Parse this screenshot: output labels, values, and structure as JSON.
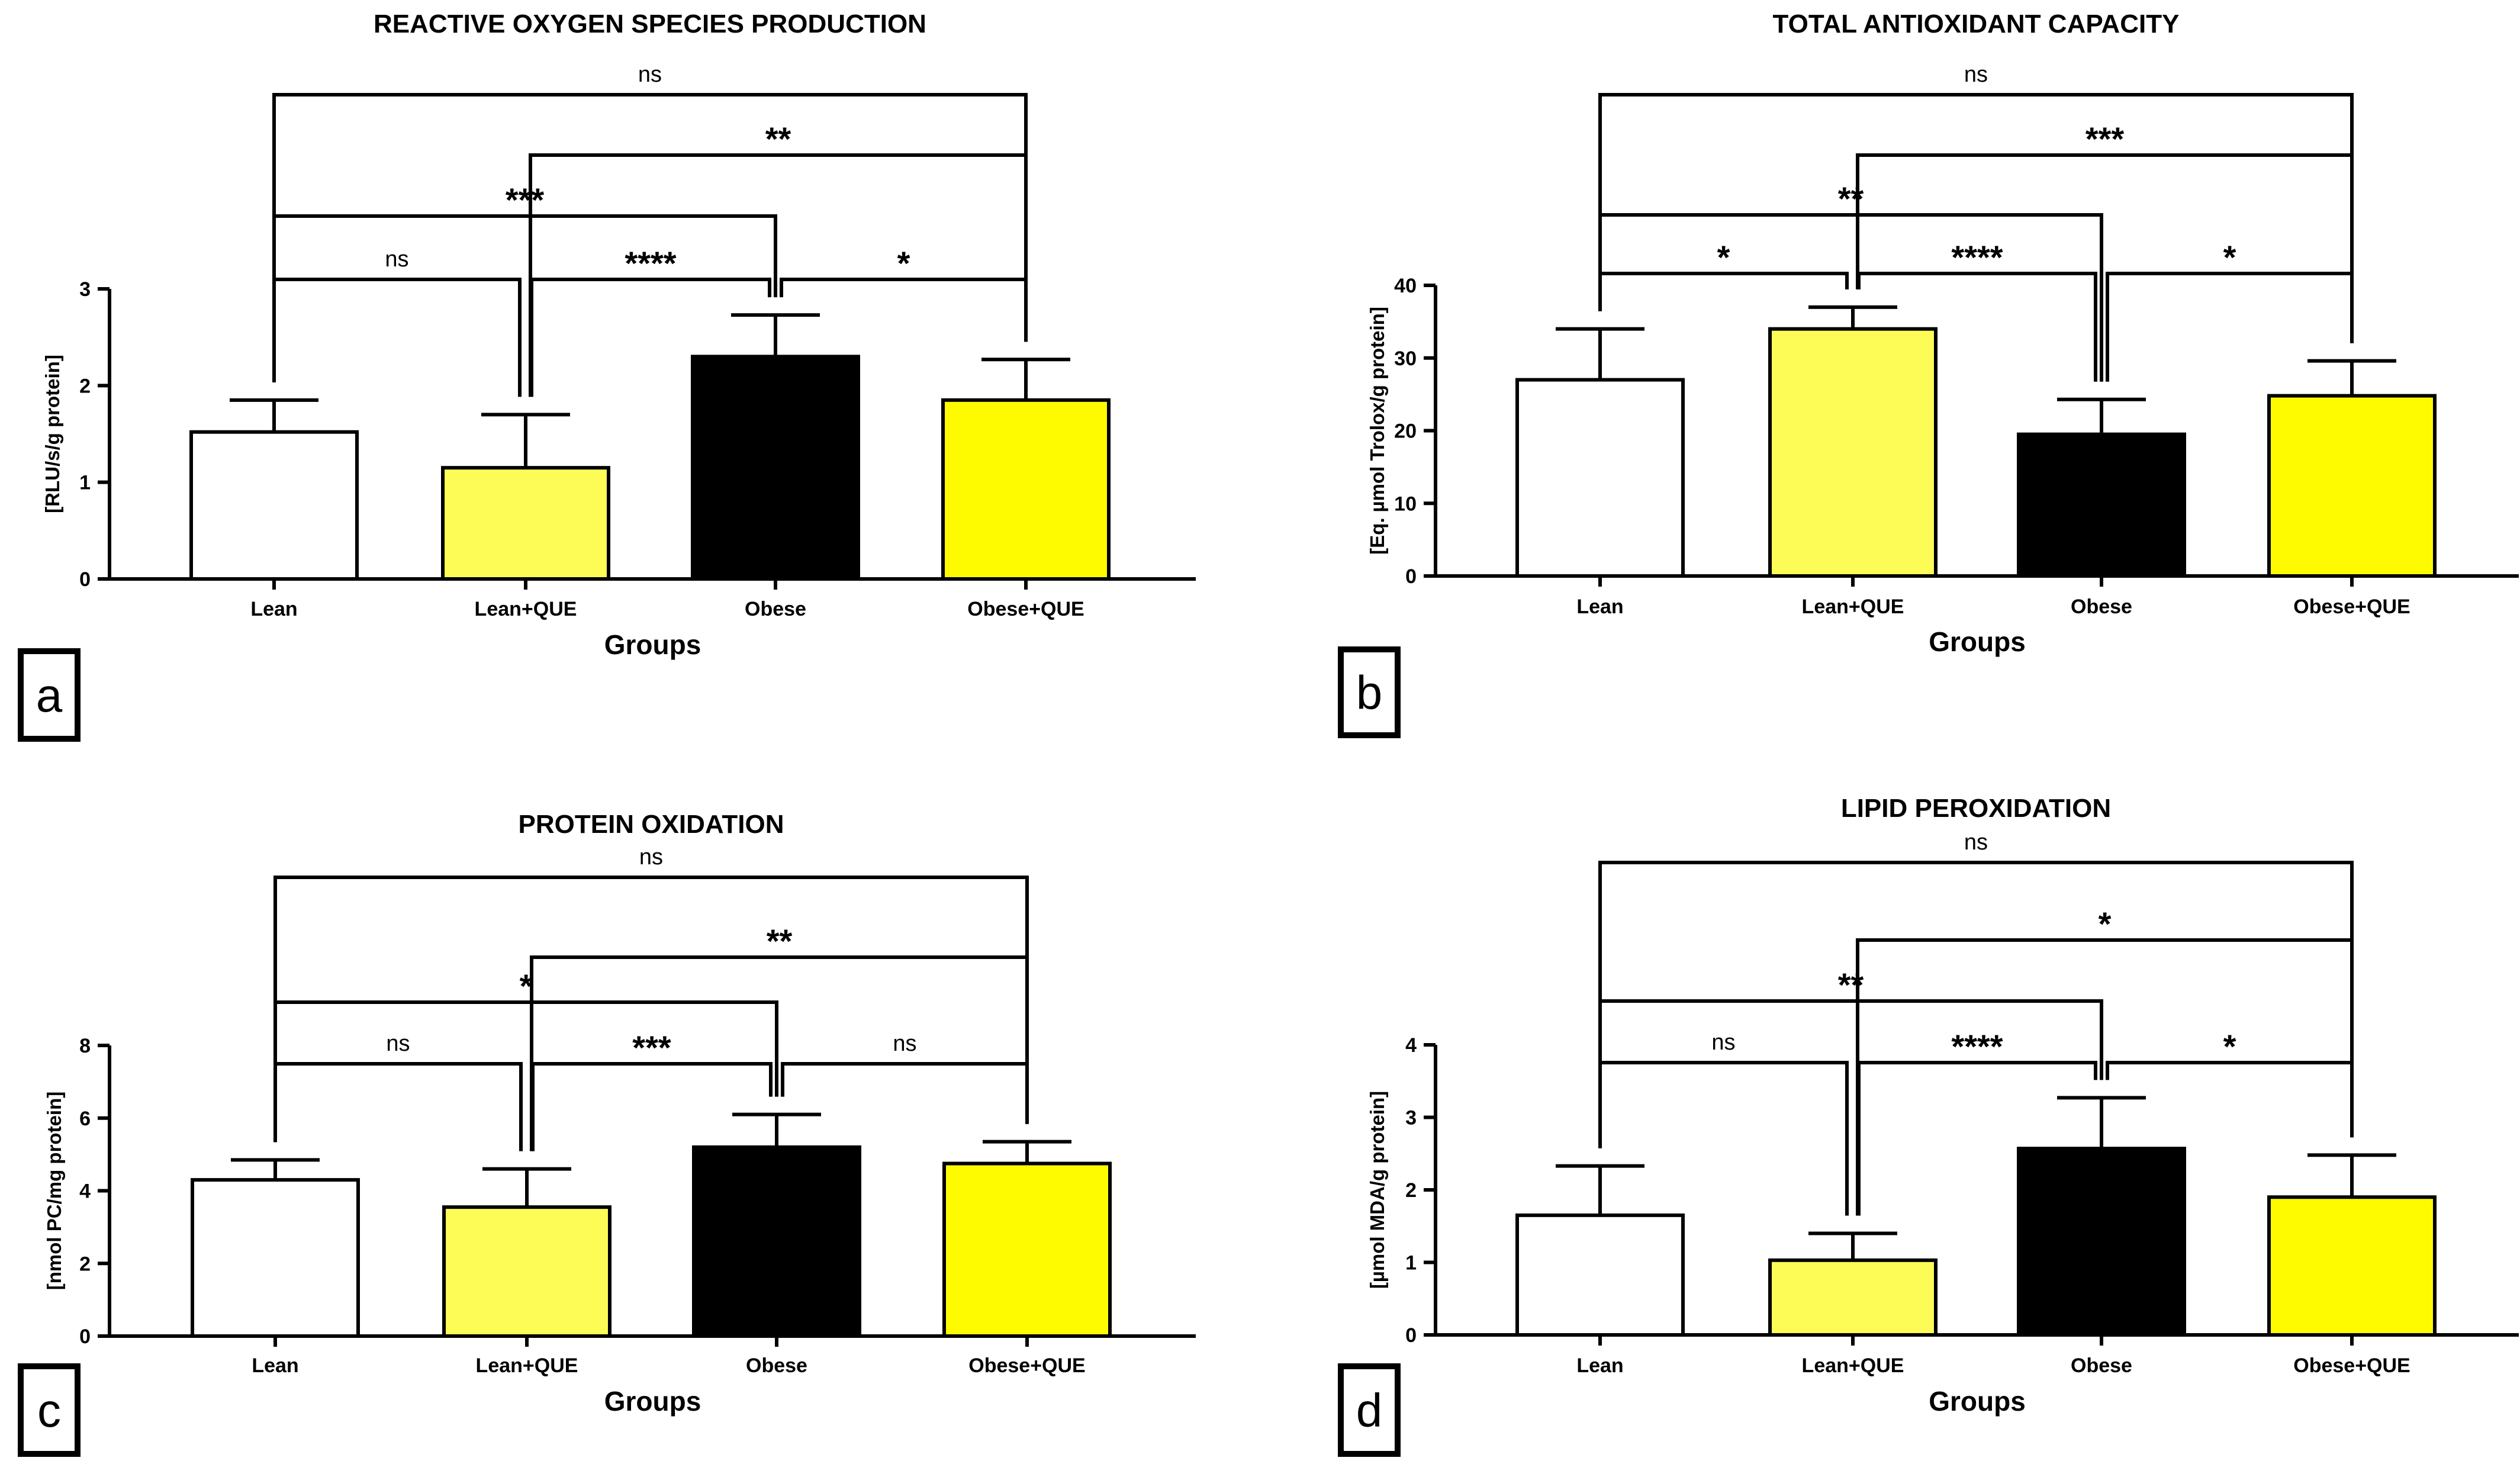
{
  "figure": {
    "group_fill": {
      "Lean": "#ffffff",
      "Lean+QUE": "#fdfc57",
      "Obese": "#000000",
      "Obese+QUE": "#fefb00"
    }
  },
  "chart_data": [
    {
      "id": "a",
      "panel_label": "a",
      "type": "bar",
      "title": "REACTIVE OXYGEN SPECIES PRODUCTION",
      "xlabel": "Groups",
      "ylabel": "[RLU/s/g protein]",
      "categories": [
        "Lean",
        "Lean+QUE",
        "Obese",
        "Obese+QUE"
      ],
      "values": [
        1.52,
        1.15,
        2.3,
        1.85
      ],
      "errors": [
        0.33,
        0.55,
        0.43,
        0.42
      ],
      "ylim": [
        0,
        3
      ],
      "yticks": [
        0,
        1,
        2,
        3
      ],
      "comparisons": [
        {
          "from": 0,
          "to": 1,
          "label": "ns"
        },
        {
          "from": 1,
          "to": 2,
          "label": "****"
        },
        {
          "from": 2,
          "to": 3,
          "label": "*"
        },
        {
          "from": 0,
          "to": 2,
          "label": "***"
        },
        {
          "from": 1,
          "to": 3,
          "label": "**"
        },
        {
          "from": 0,
          "to": 3,
          "label": "ns"
        }
      ]
    },
    {
      "id": "b",
      "panel_label": "b",
      "type": "bar",
      "title": "TOTAL ANTIOXIDANT CAPACITY",
      "xlabel": "Groups",
      "ylabel": "[Eq. µmol Trolox/g protein]",
      "categories": [
        "Lean",
        "Lean+QUE",
        "Obese",
        "Obese+QUE"
      ],
      "values": [
        27,
        34,
        19.5,
        24.8
      ],
      "errors": [
        7,
        3,
        4.8,
        4.8
      ],
      "ylim": [
        0,
        40
      ],
      "yticks": [
        0,
        10,
        20,
        30,
        40
      ],
      "comparisons": [
        {
          "from": 0,
          "to": 1,
          "label": "*"
        },
        {
          "from": 1,
          "to": 2,
          "label": "****"
        },
        {
          "from": 2,
          "to": 3,
          "label": "*"
        },
        {
          "from": 0,
          "to": 2,
          "label": "**"
        },
        {
          "from": 1,
          "to": 3,
          "label": "***"
        },
        {
          "from": 0,
          "to": 3,
          "label": "ns"
        }
      ]
    },
    {
      "id": "c",
      "panel_label": "c",
      "type": "bar",
      "title": "PROTEIN OXIDATION",
      "xlabel": "Groups",
      "ylabel": "[nmol PC/mg protein]",
      "categories": [
        "Lean",
        "Lean+QUE",
        "Obese",
        "Obese+QUE"
      ],
      "values": [
        4.3,
        3.55,
        5.2,
        4.75
      ],
      "errors": [
        0.55,
        1.05,
        0.9,
        0.6
      ],
      "ylim": [
        0,
        8
      ],
      "yticks": [
        0,
        2,
        4,
        6,
        8
      ],
      "comparisons": [
        {
          "from": 0,
          "to": 1,
          "label": "ns"
        },
        {
          "from": 1,
          "to": 2,
          "label": "***"
        },
        {
          "from": 2,
          "to": 3,
          "label": "ns"
        },
        {
          "from": 0,
          "to": 2,
          "label": "*"
        },
        {
          "from": 1,
          "to": 3,
          "label": "**"
        },
        {
          "from": 0,
          "to": 3,
          "label": "ns"
        }
      ]
    },
    {
      "id": "d",
      "panel_label": "d",
      "type": "bar",
      "title": "LIPID PEROXIDATION",
      "xlabel": "Groups",
      "ylabel": "[µmol MDA/g protein]",
      "categories": [
        "Lean",
        "Lean+QUE",
        "Obese",
        "Obese+QUE"
      ],
      "values": [
        1.65,
        1.03,
        2.57,
        1.9
      ],
      "errors": [
        0.68,
        0.37,
        0.7,
        0.58
      ],
      "ylim": [
        0,
        4
      ],
      "yticks": [
        0,
        1,
        2,
        3,
        4
      ],
      "comparisons": [
        {
          "from": 0,
          "to": 1,
          "label": "ns"
        },
        {
          "from": 1,
          "to": 2,
          "label": "****"
        },
        {
          "from": 2,
          "to": 3,
          "label": "*"
        },
        {
          "from": 0,
          "to": 2,
          "label": "**"
        },
        {
          "from": 1,
          "to": 3,
          "label": "*"
        },
        {
          "from": 0,
          "to": 3,
          "label": "ns"
        }
      ]
    }
  ]
}
